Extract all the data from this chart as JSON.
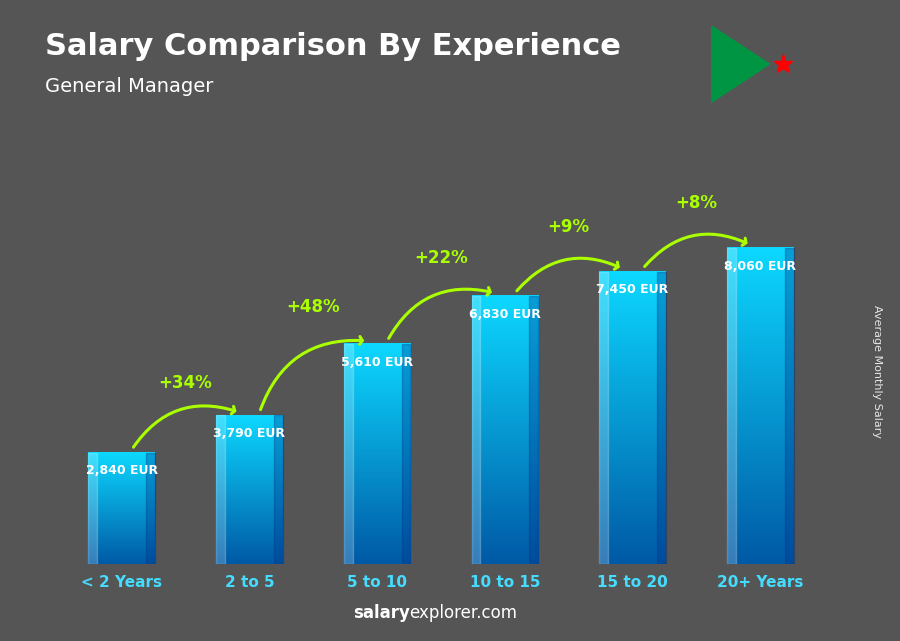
{
  "title": "Salary Comparison By Experience",
  "subtitle": "General Manager",
  "categories": [
    "< 2 Years",
    "2 to 5",
    "5 to 10",
    "10 to 15",
    "15 to 20",
    "20+ Years"
  ],
  "values": [
    2840,
    3790,
    5610,
    6830,
    7450,
    8060
  ],
  "value_labels": [
    "2,840 EUR",
    "3,790 EUR",
    "5,610 EUR",
    "6,830 EUR",
    "7,450 EUR",
    "8,060 EUR"
  ],
  "pct_labels": [
    "+34%",
    "+48%",
    "+22%",
    "+9%",
    "+8%"
  ],
  "bar_color_top": "#00d4ff",
  "bar_color_bottom": "#0066cc",
  "background_color": "#555555",
  "text_color_white": "#ffffff",
  "text_color_green": "#aaff00",
  "xlabel_color": "#44ddff",
  "watermark_bold": "salary",
  "watermark_rest": "explorer.com",
  "side_label": "Average Monthly Salary",
  "ylim": [
    0,
    9800
  ],
  "bar_width": 0.52
}
